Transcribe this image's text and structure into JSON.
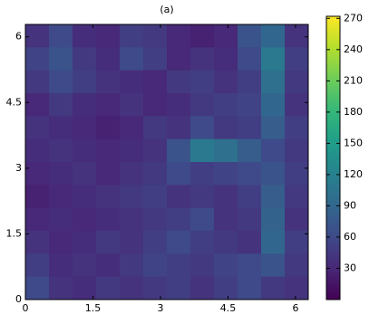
{
  "chart_data": {
    "type": "heatmap",
    "title": "(a)",
    "colormap": "viridis",
    "xlim": [
      0,
      6.283
    ],
    "ylim": [
      0,
      6.283
    ],
    "xticks": [
      0,
      1.5,
      3,
      4.5,
      6
    ],
    "yticks": [
      0,
      1.5,
      3,
      4.5,
      6
    ],
    "clim": [
      0,
      272
    ],
    "cticks": [
      30,
      60,
      90,
      120,
      150,
      180,
      210,
      240,
      270
    ],
    "z": [
      [
        40,
        60,
        35,
        30,
        50,
        45,
        30,
        25,
        30,
        70,
        90,
        40
      ],
      [
        55,
        70,
        45,
        35,
        60,
        50,
        30,
        40,
        35,
        60,
        110,
        50
      ],
      [
        45,
        60,
        50,
        40,
        35,
        30,
        45,
        50,
        40,
        50,
        100,
        45
      ],
      [
        30,
        45,
        35,
        30,
        40,
        30,
        35,
        45,
        50,
        55,
        90,
        40
      ],
      [
        40,
        35,
        30,
        25,
        30,
        45,
        40,
        60,
        45,
        50,
        80,
        50
      ],
      [
        35,
        40,
        35,
        30,
        35,
        40,
        70,
        110,
        100,
        80,
        60,
        45
      ],
      [
        30,
        35,
        40,
        30,
        40,
        45,
        60,
        50,
        55,
        60,
        70,
        50
      ],
      [
        25,
        30,
        35,
        40,
        45,
        50,
        40,
        45,
        40,
        50,
        80,
        45
      ],
      [
        30,
        35,
        30,
        35,
        40,
        45,
        50,
        60,
        40,
        45,
        85,
        40
      ],
      [
        40,
        30,
        35,
        45,
        40,
        50,
        60,
        50,
        45,
        40,
        90,
        50
      ],
      [
        50,
        35,
        40,
        35,
        45,
        55,
        50,
        45,
        55,
        60,
        70,
        45
      ],
      [
        60,
        40,
        35,
        45,
        40,
        45,
        50,
        40,
        50,
        60,
        45,
        40
      ]
    ]
  }
}
